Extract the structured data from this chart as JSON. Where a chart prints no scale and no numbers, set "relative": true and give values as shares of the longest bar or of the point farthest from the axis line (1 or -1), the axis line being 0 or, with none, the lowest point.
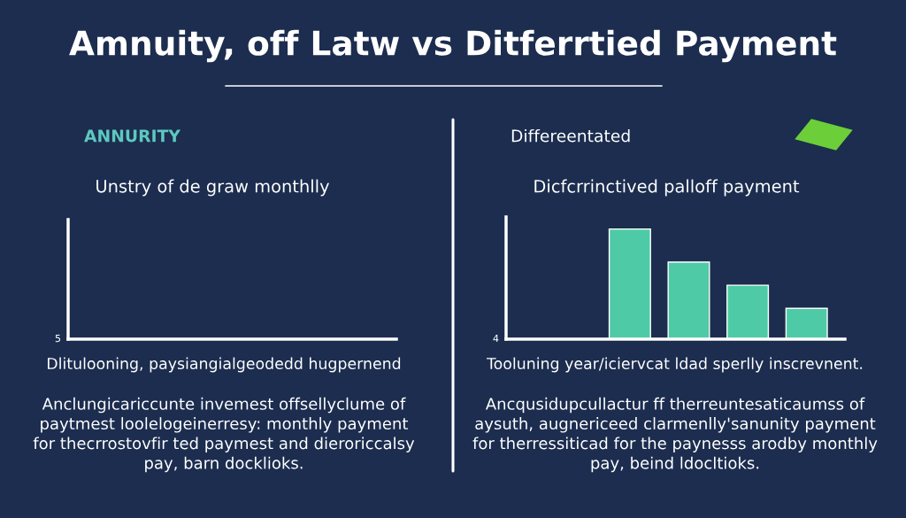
{
  "chart_data": [
    {
      "type": "other",
      "title": "Amnuity, off Latw vs Ditferrtied Payment"
    },
    {
      "type": "other",
      "title": "ANNURITY",
      "subtitle": "Unstry of de graw monthlly",
      "annotations": [
        "5",
        "Dlitulooning, paysiangialgeodedd hugpernend",
        "Anclungicariccunte invemest offsellyclume of\npaytmest loolelogeinerresy: monthly payment\nfor thecrrostovfir ted paymest and dieroriccalsy\npay, barn docklioks."
      ]
    },
    {
      "type": "bar",
      "title": "Differeentated",
      "subtitle": "Dicfcrrinctived palloff payment",
      "relative": true,
      "categories": [
        null,
        null,
        null,
        null
      ],
      "values": [
        1,
        0.7,
        0.49,
        0.28
      ],
      "color": "#4ecba6",
      "annotations": [
        "4",
        "Tooluning year/iciervcat ldad sperlly inscrevnent.",
        "Ancqusidupcullactur ff therreuntesaticaumss of\naysuth, augnericeed clarmenlly'sanunity payment\nfor therressiticad for the paynesss arodby monthly\npay, beind ldocltioks."
      ]
    }
  ]
}
